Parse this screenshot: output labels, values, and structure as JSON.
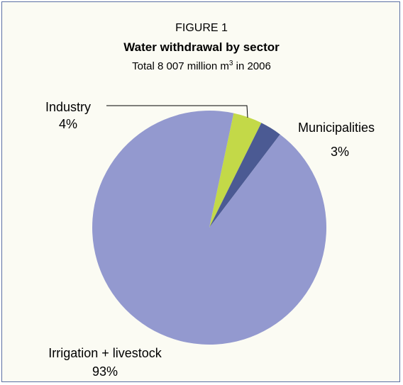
{
  "chart_data": {
    "type": "pie",
    "heading": "FIGURE 1",
    "title": "Water withdrawal by sector",
    "subtitle_prefix": "Total 8 007 million m",
    "subtitle_sup": "3",
    "subtitle_suffix": " in 2006",
    "slices": [
      {
        "label": "Irrigation + livestock",
        "value": 93,
        "value_label": "93%",
        "color": "#9399cf"
      },
      {
        "label": "Industry",
        "value": 4,
        "value_label": "4%",
        "color": "#c3d948"
      },
      {
        "label": "Municipalities",
        "value": 3,
        "value_label": "3%",
        "color": "#4b5a93"
      }
    ]
  },
  "colors": {
    "border": "#5b6fa3",
    "background": "#fbfbf3"
  }
}
